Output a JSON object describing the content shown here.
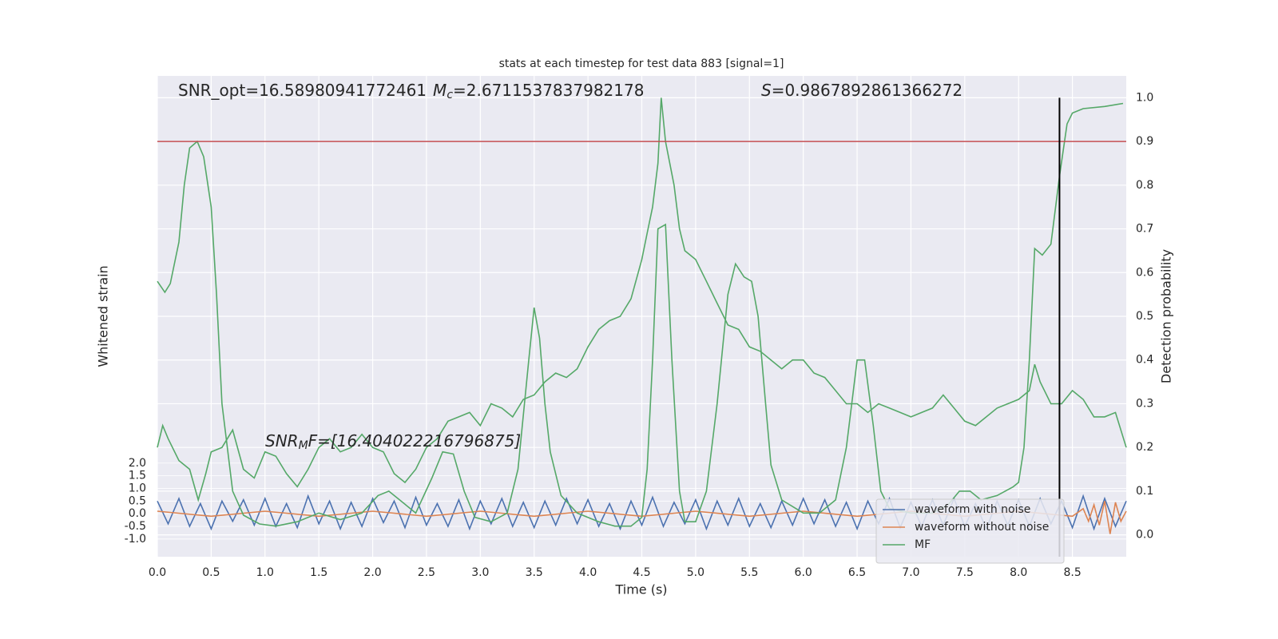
{
  "chart_data": {
    "type": "line",
    "title": "stats at each timestep for test data 883 [signal=1]",
    "xlabel": "Time (s)",
    "ylabel": "Whitened strain",
    "y2label": "Detection probability",
    "annotations": {
      "snr_opt": [
        "SNR_opt=16.58980941772461",
        "M",
        "c",
        "=2.6711537837982178"
      ],
      "score": [
        "S",
        "=0.9867892861366272"
      ],
      "snr_mf": [
        "SNR",
        "M",
        "F=[16.404022216796875]"
      ]
    },
    "xlim": [
      0,
      9
    ],
    "xticks": [
      {
        "value": 0,
        "label": "0.0"
      },
      {
        "value": 0.5,
        "label": "0.5"
      },
      {
        "value": 1,
        "label": "1.0"
      },
      {
        "value": 1.5,
        "label": "1.5"
      },
      {
        "value": 2,
        "label": "2.0"
      },
      {
        "value": 2.5,
        "label": "2.5"
      },
      {
        "value": 3,
        "label": "3.0"
      },
      {
        "value": 3.5,
        "label": "3.5"
      },
      {
        "value": 4,
        "label": "4.0"
      },
      {
        "value": 4.5,
        "label": "4.5"
      },
      {
        "value": 5,
        "label": "5.0"
      },
      {
        "value": 5.5,
        "label": "5.5"
      },
      {
        "value": 6,
        "label": "6.0"
      },
      {
        "value": 6.5,
        "label": "6.5"
      },
      {
        "value": 7,
        "label": "7.0"
      },
      {
        "value": 7.5,
        "label": "7.5"
      },
      {
        "value": 8,
        "label": "8.0"
      },
      {
        "value": 8.5,
        "label": "8.5"
      }
    ],
    "ylim": [
      -1.7,
      17.3
    ],
    "yticks": [
      {
        "value": -1,
        "label": "-1.0"
      },
      {
        "value": -0.5,
        "label": "-0.5"
      },
      {
        "value": 0,
        "label": "0.0"
      },
      {
        "value": 0.5,
        "label": "0.5"
      },
      {
        "value": 1,
        "label": "1.0"
      },
      {
        "value": 1.5,
        "label": "1.5"
      },
      {
        "value": 2,
        "label": "2.0"
      }
    ],
    "y2lim": [
      -0.05,
      1.05
    ],
    "y2ticks": [
      {
        "value": 0,
        "label": "0.0"
      },
      0.1,
      0.2,
      0.3,
      0.4,
      0.5,
      0.6,
      0.7,
      0.8,
      0.9,
      {
        "value": 1,
        "label": "1.0"
      }
    ],
    "grid": true,
    "legend": "lower right",
    "hline": {
      "y": 0.9,
      "axis": "y2",
      "color": "#c44e52"
    },
    "vline": {
      "x": 8.38,
      "y_range": [
        -0.05,
        1.0
      ],
      "axis": "y2",
      "color": "#000000"
    },
    "series": [
      {
        "name": "waveform with noise",
        "color": "#4c72b0",
        "x": [
          0,
          0.1,
          0.2,
          0.3,
          0.4,
          0.5,
          0.6,
          0.7,
          0.8,
          0.9,
          1,
          1.1,
          1.2,
          1.3,
          1.4,
          1.5,
          1.6,
          1.7,
          1.8,
          1.9,
          2,
          2.1,
          2.2,
          2.3,
          2.4,
          2.5,
          2.6,
          2.7,
          2.8,
          2.9,
          3,
          3.1,
          3.2,
          3.3,
          3.4,
          3.5,
          3.6,
          3.7,
          3.8,
          3.9,
          4,
          4.1,
          4.2,
          4.3,
          4.4,
          4.5,
          4.6,
          4.7,
          4.8,
          4.9,
          5,
          5.1,
          5.2,
          5.3,
          5.4,
          5.5,
          5.6,
          5.7,
          5.8,
          5.9,
          6,
          6.1,
          6.2,
          6.3,
          6.4,
          6.5,
          6.6,
          6.7,
          6.8,
          6.9,
          7,
          7.1,
          7.2,
          7.3,
          7.4,
          7.5,
          7.6,
          7.7,
          7.8,
          7.9,
          8,
          8.1,
          8.2,
          8.3,
          8.4,
          8.5,
          8.6,
          8.7,
          8.8,
          8.9,
          9
        ],
        "values": [
          0.5,
          -0.4,
          0.6,
          -0.5,
          0.4,
          -0.6,
          0.5,
          -0.3,
          0.55,
          -0.45,
          0.6,
          -0.5,
          0.4,
          -0.55,
          0.7,
          -0.4,
          0.5,
          -0.6,
          0.45,
          -0.5,
          0.6,
          -0.35,
          0.5,
          -0.55,
          0.65,
          -0.45,
          0.4,
          -0.5,
          0.55,
          -0.6,
          0.5,
          -0.4,
          0.6,
          -0.5,
          0.45,
          -0.55,
          0.5,
          -0.45,
          0.6,
          -0.4,
          0.55,
          -0.5,
          0.4,
          -0.6,
          0.5,
          -0.45,
          0.65,
          -0.5,
          0.45,
          -0.4,
          0.55,
          -0.6,
          0.5,
          -0.45,
          0.6,
          -0.5,
          0.4,
          -0.55,
          0.5,
          -0.45,
          0.6,
          -0.4,
          0.55,
          -0.5,
          0.45,
          -0.6,
          0.5,
          -0.4,
          0.6,
          -0.55,
          0.45,
          -0.5,
          0.55,
          -0.45,
          0.6,
          -0.5,
          0.4,
          -0.6,
          0.5,
          -0.45,
          0.55,
          -0.5,
          0.6,
          -0.4,
          0.5,
          -0.55,
          0.7,
          -0.6,
          0.6,
          -0.5,
          0.5
        ]
      },
      {
        "name": "waveform without noise",
        "color": "#dd8452",
        "x": [
          0,
          0.5,
          1,
          1.5,
          2,
          2.5,
          3,
          3.5,
          4,
          4.5,
          5,
          5.5,
          6,
          6.5,
          7,
          7.5,
          8,
          8.5,
          8.6,
          8.65,
          8.7,
          8.75,
          8.8,
          8.85,
          8.9,
          8.95,
          9
        ],
        "values": [
          0.1,
          -0.1,
          0.1,
          -0.1,
          0.1,
          -0.1,
          0.1,
          -0.1,
          0.1,
          -0.1,
          0.1,
          -0.1,
          0.1,
          -0.1,
          0.1,
          -0.1,
          0.1,
          -0.1,
          0.2,
          -0.3,
          0.35,
          -0.45,
          0.5,
          -0.8,
          0.45,
          -0.3,
          0.1
        ]
      },
      {
        "name": "MF",
        "color": "#55a868",
        "axis": "y2",
        "x": [
          0,
          0.07,
          0.12,
          0.2,
          0.25,
          0.3,
          0.37,
          0.43,
          0.5,
          0.55,
          0.6,
          0.7,
          0.8,
          0.95,
          1.1,
          1.3,
          1.5,
          1.7,
          1.9,
          2.05,
          2.15,
          2.3,
          2.4,
          2.55,
          2.65,
          2.75,
          2.85,
          2.95,
          3.1,
          3.25,
          3.35,
          3.45,
          3.5,
          3.55,
          3.6,
          3.65,
          3.75,
          3.9,
          4.1,
          4.25,
          4.4,
          4.5,
          4.55,
          4.6,
          4.65,
          4.72,
          4.78,
          4.85,
          4.9,
          5,
          5.1,
          5.2,
          5.3,
          5.37,
          5.45,
          5.52,
          5.58,
          5.65,
          5.7,
          5.8,
          6,
          6.15,
          6.3,
          6.4,
          6.5,
          6.57,
          6.65,
          6.72,
          6.8,
          7,
          7.2,
          7.35,
          7.45,
          7.55,
          7.65,
          7.8,
          7.95,
          8,
          8.05,
          8.1,
          8.15,
          8.22,
          8.3,
          8.38,
          8.45,
          8.5,
          8.6,
          8.8,
          8.97
        ],
        "values": [
          0.58,
          0.555,
          0.575,
          0.67,
          0.8,
          0.885,
          0.9,
          0.865,
          0.75,
          0.55,
          0.3,
          0.1,
          0.045,
          0.025,
          0.02,
          0.03,
          0.05,
          0.035,
          0.05,
          0.09,
          0.1,
          0.07,
          0.05,
          0.13,
          0.19,
          0.185,
          0.1,
          0.04,
          0.03,
          0.05,
          0.15,
          0.4,
          0.52,
          0.45,
          0.3,
          0.19,
          0.09,
          0.05,
          0.03,
          0.02,
          0.02,
          0.04,
          0.15,
          0.4,
          0.7,
          0.71,
          0.4,
          0.1,
          0.03,
          0.03,
          0.1,
          0.3,
          0.55,
          0.62,
          0.59,
          0.58,
          0.5,
          0.3,
          0.16,
          0.08,
          0.05,
          0.05,
          0.08,
          0.2,
          0.4,
          0.4,
          0.25,
          0.1,
          0.06,
          0.05,
          0.05,
          0.07,
          0.1,
          0.1,
          0.08,
          0.09,
          0.11,
          0.12,
          0.2,
          0.4,
          0.655,
          0.64,
          0.665,
          0.82,
          0.94,
          0.965,
          0.975,
          0.98,
          0.987
        ]
      },
      {
        "color": "#55a868",
        "axis": "y2",
        "x": [
          0,
          0.05,
          0.1,
          0.2,
          0.3,
          0.38,
          0.45,
          0.5,
          0.6,
          0.7,
          0.8,
          0.9,
          1,
          1.1,
          1.2,
          1.3,
          1.4,
          1.5,
          1.6,
          1.7,
          1.8,
          1.9,
          2,
          2.1,
          2.2,
          2.3,
          2.4,
          2.5,
          2.6,
          2.7,
          2.8,
          2.9,
          3,
          3.1,
          3.2,
          3.3,
          3.4,
          3.5,
          3.6,
          3.7,
          3.8,
          3.9,
          4,
          4.1,
          4.2,
          4.3,
          4.4,
          4.5,
          4.55,
          4.6,
          4.65,
          4.68,
          4.72,
          4.8,
          4.85,
          4.9,
          5,
          5.1,
          5.2,
          5.3,
          5.4,
          5.5,
          5.6,
          5.7,
          5.8,
          5.9,
          6,
          6.1,
          6.2,
          6.3,
          6.4,
          6.5,
          6.6,
          6.7,
          6.8,
          6.9,
          7,
          7.1,
          7.2,
          7.3,
          7.4,
          7.5,
          7.6,
          7.7,
          7.8,
          7.9,
          8,
          8.1,
          8.15,
          8.2,
          8.3,
          8.4,
          8.5,
          8.6,
          8.7,
          8.8,
          8.9,
          9
        ],
        "values": [
          0.2,
          0.25,
          0.22,
          0.17,
          0.15,
          0.08,
          0.14,
          0.19,
          0.2,
          0.24,
          0.15,
          0.13,
          0.19,
          0.18,
          0.14,
          0.11,
          0.15,
          0.2,
          0.22,
          0.19,
          0.2,
          0.23,
          0.2,
          0.19,
          0.14,
          0.12,
          0.15,
          0.2,
          0.22,
          0.26,
          0.27,
          0.28,
          0.25,
          0.3,
          0.29,
          0.27,
          0.31,
          0.32,
          0.35,
          0.37,
          0.36,
          0.38,
          0.43,
          0.47,
          0.49,
          0.5,
          0.54,
          0.63,
          0.69,
          0.75,
          0.85,
          1.0,
          0.9,
          0.8,
          0.7,
          0.65,
          0.63,
          0.58,
          0.53,
          0.48,
          0.47,
          0.43,
          0.42,
          0.4,
          0.38,
          0.4,
          0.4,
          0.37,
          0.36,
          0.33,
          0.3,
          0.3,
          0.28,
          0.3,
          0.29,
          0.28,
          0.27,
          0.28,
          0.29,
          0.32,
          0.29,
          0.26,
          0.25,
          0.27,
          0.29,
          0.3,
          0.31,
          0.33,
          0.39,
          0.35,
          0.3,
          0.3,
          0.33,
          0.31,
          0.27,
          0.27,
          0.28,
          0.2
        ]
      }
    ]
  }
}
